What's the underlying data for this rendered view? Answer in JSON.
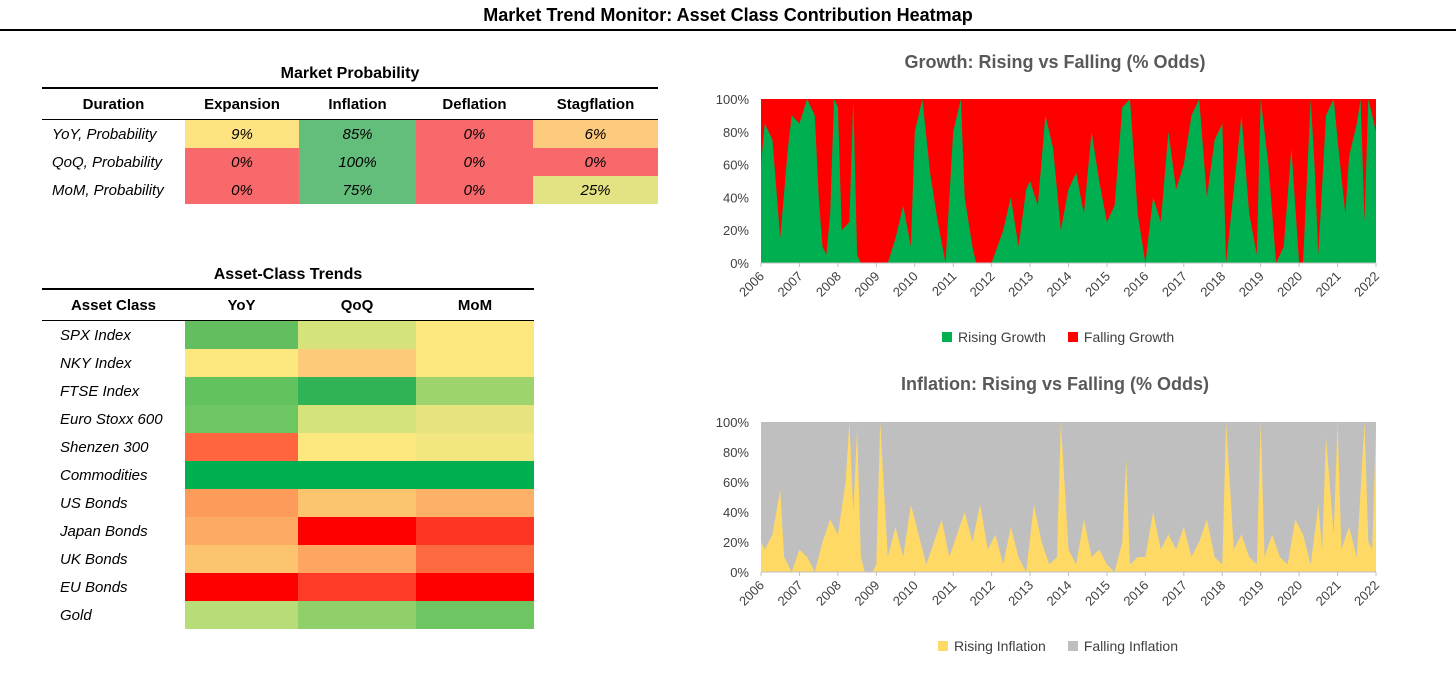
{
  "page": {
    "title": "Market Trend Monitor: Asset Class Contribution Heatmap"
  },
  "colors": {
    "green": "#00b050",
    "red": "#ff0000",
    "yellow": "#ffd966",
    "grey": "#bfbfbf"
  },
  "probability_table": {
    "title": "Market Probability",
    "headers": [
      "Duration",
      "Expansion",
      "Inflation",
      "Deflation",
      "Stagflation"
    ],
    "rows": [
      {
        "label": "YoY, Probability",
        "values": [
          "9%",
          "85%",
          "0%",
          "6%"
        ],
        "colors": [
          "#fde382",
          "#63be7b",
          "#f8696b",
          "#fdcb7e"
        ]
      },
      {
        "label": "QoQ, Probability",
        "values": [
          "0%",
          "100%",
          "0%",
          "0%"
        ],
        "colors": [
          "#f8696b",
          "#63be7b",
          "#f8696b",
          "#f8696b"
        ]
      },
      {
        "label": "MoM, Probability",
        "values": [
          "0%",
          "75%",
          "0%",
          "25%"
        ],
        "colors": [
          "#f8696b",
          "#63be7b",
          "#f8696b",
          "#e4e383"
        ]
      }
    ]
  },
  "asset_table": {
    "title": "Asset-Class Trends",
    "headers": [
      "Asset Class",
      "YoY",
      "QoQ",
      "MoM"
    ],
    "rows": [
      {
        "label": "SPX Index",
        "colors": [
          "#63be60",
          "#d6e27a",
          "#fde77f"
        ]
      },
      {
        "label": "NKY Index",
        "colors": [
          "#fde77f",
          "#fdca78",
          "#fde77f"
        ]
      },
      {
        "label": "FTSE Index",
        "colors": [
          "#62c35e",
          "#2fb355",
          "#9ed46e"
        ]
      },
      {
        "label": "Euro Stoxx 600",
        "colors": [
          "#6ec662",
          "#d6e27a",
          "#e6e47e"
        ]
      },
      {
        "label": "Shenzen 300",
        "colors": [
          "#ff6640",
          "#fde77f",
          "#f2e681"
        ]
      },
      {
        "label": "Commodities",
        "colors": [
          "#00b050",
          "#00b050",
          "#00b050"
        ]
      },
      {
        "label": "US Bonds",
        "colors": [
          "#fd9c5a",
          "#fdc470",
          "#fdb067"
        ]
      },
      {
        "label": "Japan Bonds",
        "colors": [
          "#fdaa63",
          "#ff0000",
          "#fe3525"
        ]
      },
      {
        "label": "UK Bonds",
        "colors": [
          "#fdc470",
          "#fda561",
          "#fe6a40"
        ]
      },
      {
        "label": "EU Bonds",
        "colors": [
          "#ff0000",
          "#fe3a28",
          "#ff0000"
        ]
      },
      {
        "label": "Gold",
        "colors": [
          "#b8dc77",
          "#8fd06b",
          "#6ec662"
        ]
      }
    ]
  },
  "chart_data": [
    {
      "type": "area",
      "stacked": true,
      "title": "Growth: Rising vs Falling (% Odds)",
      "x_ticks": [
        "2006",
        "2007",
        "2008",
        "2009",
        "2010",
        "2011",
        "2012",
        "2013",
        "2014",
        "2015",
        "2016",
        "2017",
        "2018",
        "2019",
        "2020",
        "2021",
        "2022"
      ],
      "x_range": [
        2006,
        2022
      ],
      "y_ticks": [
        "0%",
        "20%",
        "40%",
        "60%",
        "80%",
        "100%"
      ],
      "ylim": [
        0,
        100
      ],
      "legend_position": "bottom",
      "series": [
        {
          "name": "Rising Growth",
          "color": "#00b050",
          "x": [
            2006.0,
            2006.1,
            2006.3,
            2006.5,
            2006.7,
            2006.8,
            2007.0,
            2007.2,
            2007.4,
            2007.5,
            2007.6,
            2007.7,
            2007.8,
            2007.9,
            2008.0,
            2008.1,
            2008.3,
            2008.4,
            2008.5,
            2008.6,
            2009.0,
            2009.3,
            2009.5,
            2009.7,
            2009.9,
            2010.0,
            2010.2,
            2010.4,
            2010.6,
            2010.8,
            2011.0,
            2011.2,
            2011.3,
            2011.5,
            2011.6,
            2011.7,
            2012.0,
            2012.3,
            2012.5,
            2012.7,
            2012.9,
            2013.0,
            2013.2,
            2013.4,
            2013.6,
            2013.8,
            2014.0,
            2014.2,
            2014.4,
            2014.6,
            2014.8,
            2015.0,
            2015.2,
            2015.4,
            2015.6,
            2015.8,
            2016.0,
            2016.2,
            2016.4,
            2016.6,
            2016.8,
            2017.0,
            2017.2,
            2017.4,
            2017.6,
            2017.8,
            2018.0,
            2018.1,
            2018.3,
            2018.5,
            2018.7,
            2018.9,
            2019.0,
            2019.2,
            2019.4,
            2019.6,
            2019.8,
            2020.0,
            2020.1,
            2020.3,
            2020.4,
            2020.5,
            2020.7,
            2020.9,
            2021.0,
            2021.2,
            2021.3,
            2021.5,
            2021.6,
            2021.7,
            2021.8,
            2022.0
          ],
          "y": [
            60,
            85,
            75,
            15,
            70,
            90,
            85,
            100,
            90,
            40,
            10,
            5,
            30,
            100,
            95,
            20,
            25,
            100,
            5,
            0,
            0,
            0,
            15,
            35,
            10,
            80,
            100,
            55,
            25,
            0,
            80,
            100,
            40,
            10,
            0,
            0,
            0,
            20,
            40,
            10,
            45,
            50,
            35,
            90,
            70,
            20,
            45,
            55,
            30,
            80,
            50,
            25,
            35,
            95,
            100,
            30,
            0,
            40,
            25,
            80,
            45,
            60,
            90,
            100,
            40,
            75,
            85,
            0,
            45,
            90,
            30,
            5,
            100,
            60,
            0,
            10,
            70,
            0,
            0,
            100,
            60,
            5,
            90,
            100,
            75,
            30,
            65,
            85,
            100,
            25,
            100,
            80
          ]
        },
        {
          "name": "Falling Growth",
          "color": "#ff0000"
        }
      ]
    },
    {
      "type": "area",
      "stacked": true,
      "title": "Inflation: Rising vs Falling  (% Odds)",
      "x_ticks": [
        "2006",
        "2007",
        "2008",
        "2009",
        "2010",
        "2011",
        "2012",
        "2013",
        "2014",
        "2015",
        "2016",
        "2017",
        "2018",
        "2019",
        "2020",
        "2021",
        "2022"
      ],
      "x_range": [
        2006,
        2022
      ],
      "y_ticks": [
        "0%",
        "20%",
        "40%",
        "60%",
        "80%",
        "100%"
      ],
      "ylim": [
        0,
        100
      ],
      "legend_position": "bottom",
      "series": [
        {
          "name": "Rising Inflation",
          "color": "#ffd966",
          "x": [
            2006.0,
            2006.1,
            2006.3,
            2006.5,
            2006.6,
            2006.8,
            2007.0,
            2007.2,
            2007.4,
            2007.6,
            2007.8,
            2008.0,
            2008.2,
            2008.3,
            2008.4,
            2008.5,
            2008.6,
            2008.7,
            2008.9,
            2009.0,
            2009.1,
            2009.3,
            2009.5,
            2009.7,
            2009.9,
            2010.1,
            2010.3,
            2010.5,
            2010.7,
            2010.9,
            2011.1,
            2011.3,
            2011.5,
            2011.7,
            2011.9,
            2012.1,
            2012.3,
            2012.5,
            2012.7,
            2012.9,
            2013.1,
            2013.3,
            2013.5,
            2013.7,
            2013.8,
            2014.0,
            2014.2,
            2014.4,
            2014.6,
            2014.8,
            2015.0,
            2015.2,
            2015.4,
            2015.5,
            2015.6,
            2015.8,
            2016.0,
            2016.2,
            2016.4,
            2016.6,
            2016.8,
            2017.0,
            2017.2,
            2017.4,
            2017.6,
            2017.8,
            2018.0,
            2018.1,
            2018.3,
            2018.5,
            2018.7,
            2018.9,
            2019.0,
            2019.1,
            2019.3,
            2019.5,
            2019.7,
            2019.9,
            2020.1,
            2020.3,
            2020.5,
            2020.6,
            2020.7,
            2020.9,
            2021.0,
            2021.1,
            2021.3,
            2021.5,
            2021.7,
            2021.8,
            2021.9,
            2022.0
          ],
          "y": [
            20,
            15,
            25,
            55,
            10,
            0,
            15,
            10,
            0,
            20,
            35,
            25,
            60,
            100,
            40,
            95,
            10,
            0,
            0,
            5,
            100,
            10,
            30,
            10,
            45,
            25,
            5,
            20,
            35,
            10,
            25,
            40,
            20,
            45,
            15,
            25,
            5,
            30,
            10,
            0,
            45,
            20,
            5,
            10,
            100,
            15,
            5,
            35,
            10,
            15,
            5,
            0,
            20,
            75,
            5,
            10,
            10,
            40,
            15,
            25,
            15,
            30,
            10,
            20,
            35,
            10,
            5,
            100,
            15,
            25,
            10,
            5,
            100,
            10,
            25,
            10,
            5,
            35,
            25,
            5,
            45,
            15,
            90,
            25,
            100,
            15,
            30,
            10,
            100,
            20,
            15,
            95
          ]
        },
        {
          "name": "Falling Inflation",
          "color": "#bfbfbf"
        }
      ]
    }
  ]
}
